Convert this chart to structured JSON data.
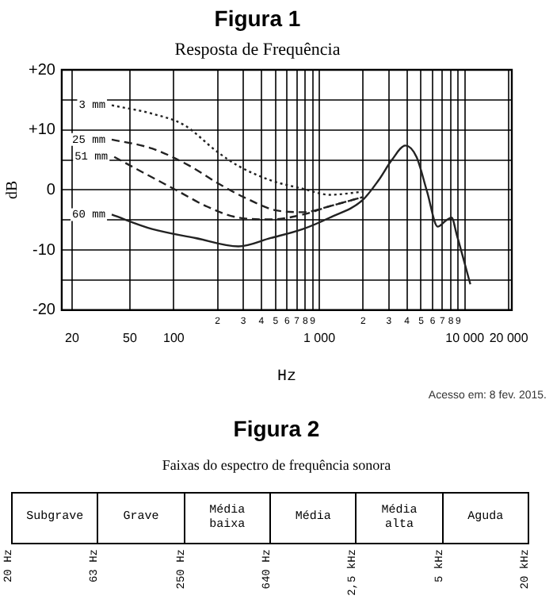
{
  "chart_data": [
    {
      "type": "line",
      "title": "Figura 1",
      "subtitle": "Resposta de Frequência",
      "xlabel": "Hz",
      "ylabel": "dB",
      "log": "x",
      "grid": true,
      "xlim": [
        17,
        21000
      ],
      "ylim": [
        -20,
        20
      ],
      "xticks": [
        20,
        50,
        100,
        {
          "value": 200,
          "label": null
        },
        {
          "value": 300,
          "label": null
        },
        {
          "value": 400,
          "label": null
        },
        {
          "value": 500,
          "label": null
        },
        {
          "value": 600,
          "label": null
        },
        {
          "value": 700,
          "label": null
        },
        {
          "value": 800,
          "label": null
        },
        {
          "value": 900,
          "label": null
        },
        {
          "value": 1000,
          "label": "1 000"
        },
        {
          "value": 2000,
          "label": null
        },
        {
          "value": 3000,
          "label": null
        },
        {
          "value": 4000,
          "label": null
        },
        {
          "value": 5000,
          "label": null
        },
        {
          "value": 6000,
          "label": null
        },
        {
          "value": 7000,
          "label": null
        },
        {
          "value": 8000,
          "label": null
        },
        {
          "value": 9000,
          "label": null
        },
        {
          "value": 10000,
          "label": "10 000"
        },
        {
          "value": 20000,
          "label": "20 000"
        }
      ],
      "yticks": [
        -20,
        {
          "value": -15,
          "label": null
        },
        -10,
        {
          "value": -5,
          "label": null
        },
        0,
        {
          "value": 5,
          "label": null
        },
        {
          "value": 10,
          "label": "+10"
        },
        {
          "value": 15,
          "label": null
        },
        {
          "value": 20,
          "label": "+20"
        }
      ],
      "series": [
        {
          "name": "3 mm",
          "color": "#222222",
          "line_style": "dotted",
          "x": [
            37.5,
            71,
            118,
            198,
            278,
            464,
            772,
            1180,
            1980
          ],
          "values": [
            14.1,
            12.7,
            10.8,
            6.4,
            4.0,
            1.6,
            0.2,
            -0.8,
            -0.3
          ]
        },
        {
          "name": "25 mm",
          "color": "#222222",
          "line_style": "dashed",
          "x": [
            37.5,
            71,
            129,
            198,
            303,
            506,
            772,
            1180,
            1980
          ],
          "values": [
            8.4,
            6.9,
            4.0,
            1.2,
            -1.2,
            -3.4,
            -3.7,
            -2.7,
            -1.2
          ]
        },
        {
          "name": "51 mm",
          "color": "#222222",
          "line_style": "dashed",
          "x": [
            39,
            65,
            109,
            167,
            278,
            464,
            772,
            1180,
            1980
          ],
          "values": [
            5.5,
            2.6,
            -0.3,
            -2.7,
            -4.6,
            -4.9,
            -4.1,
            -2.7,
            -1.2
          ]
        },
        {
          "name": "60 mm",
          "color": "#222222",
          "line_style": "solid",
          "x": [
            37.5,
            71,
            141,
            278,
            464,
            772,
            1180,
            1980,
            2550,
            3150,
            3900,
            4650,
            5500,
            6500,
            7400,
            8100,
            8800,
            10900
          ],
          "values": [
            -4.1,
            -6.5,
            -8.0,
            -9.4,
            -8.0,
            -6.5,
            -4.6,
            -1.7,
            1.6,
            5.0,
            7.4,
            5.5,
            -0.3,
            -6.1,
            -5.1,
            -4.6,
            -7.5,
            -15.7
          ]
        }
      ],
      "annotations": [
        "2 3 4 5 6 7 8 9",
        "2 3 4 5 6 7 8 9",
        "Acesso em: 8 fev. 2015."
      ]
    },
    {
      "type": "other",
      "title": "Figura 2",
      "subtitle": "Faixas do espectro de frequência sonora",
      "categories": [
        "Subgrave",
        "Grave",
        "Média baixa",
        "Média",
        "Média alta",
        "Aguda"
      ],
      "annotations": [
        "20 Hz",
        "63 Hz",
        "250 Hz",
        "640 Hz",
        "2,5 kHz",
        "5 kHz",
        "20 kHz"
      ]
    }
  ]
}
